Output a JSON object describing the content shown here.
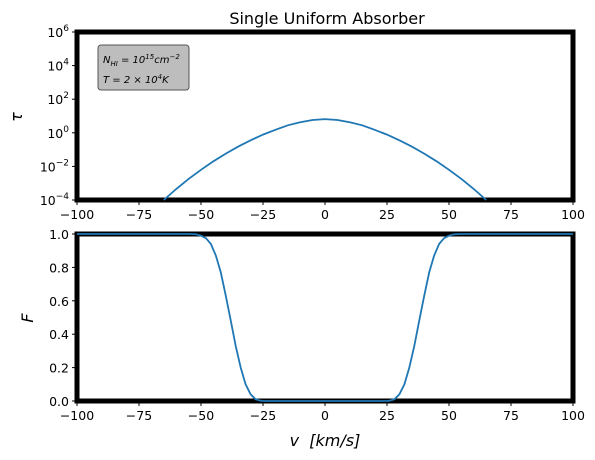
{
  "chart_data": [
    {
      "type": "line",
      "title": "Single Uniform Absorber",
      "ylabel": "τ",
      "yscale": "log",
      "xlim": [
        -100,
        100
      ],
      "ylim": [
        0.0001,
        1000000
      ],
      "xticks": [
        -100,
        -75,
        -50,
        -25,
        0,
        25,
        50,
        75,
        100
      ],
      "ytick_labels": [
        {
          "value": 0.0001,
          "base": "10",
          "exp": "−4"
        },
        {
          "value": 0.01,
          "base": "10",
          "exp": "−2"
        },
        {
          "value": 1,
          "base": "10",
          "exp": "0"
        },
        {
          "value": 100,
          "base": "10",
          "exp": "2"
        },
        {
          "value": 10000,
          "base": "10",
          "exp": "4"
        },
        {
          "value": 1000000,
          "base": "10",
          "exp": "6"
        }
      ],
      "annotation": {
        "line1": {
          "prefix": "N",
          "sub": "HI",
          "mid": " = 10",
          "sup": "15",
          "suffix": "cm",
          "sup2": "−2"
        },
        "line2": {
          "prefix": "T = 2 × 10",
          "sup": "4",
          "suffix": "K"
        }
      },
      "series": [
        {
          "color": "#1f77b4",
          "x": [
            -65,
            -60,
            -55,
            -50,
            -45,
            -40,
            -35,
            -30,
            -25,
            -20,
            -15,
            -10,
            -5,
            0,
            5,
            10,
            15,
            20,
            25,
            30,
            35,
            40,
            45,
            50,
            55,
            60,
            65
          ],
          "y": [
            0.0001,
            0.00045,
            0.0018,
            0.0063,
            0.02,
            0.058,
            0.15,
            0.36,
            0.78,
            1.5,
            2.8,
            4.3,
            5.8,
            6.5,
            5.8,
            4.3,
            2.8,
            1.5,
            0.78,
            0.36,
            0.15,
            0.058,
            0.02,
            0.0063,
            0.0018,
            0.00045,
            0.0001
          ]
        }
      ]
    },
    {
      "type": "line",
      "ylabel": "F",
      "xlabel": "v  [km/s]",
      "xlim": [
        -100,
        100
      ],
      "ylim": [
        0,
        1
      ],
      "xticks": [
        -100,
        -75,
        -50,
        -25,
        0,
        25,
        50,
        75,
        100
      ],
      "yticks": [
        "0.0",
        "0.2",
        "0.4",
        "0.6",
        "0.8",
        "1.0"
      ],
      "series": [
        {
          "color": "#1f77b4",
          "x": [
            -100,
            -55,
            -52,
            -50,
            -48,
            -46,
            -44,
            -42,
            -40,
            -38,
            -36,
            -34,
            -32,
            -30,
            -28,
            -26,
            -25,
            25,
            26,
            28,
            30,
            32,
            34,
            36,
            38,
            40,
            42,
            44,
            46,
            48,
            50,
            52,
            55,
            100
          ],
          "y": [
            1.0,
            1.0,
            0.998,
            0.99,
            0.975,
            0.94,
            0.87,
            0.77,
            0.63,
            0.48,
            0.33,
            0.2,
            0.1,
            0.04,
            0.01,
            0.002,
            0.0,
            0.0,
            0.002,
            0.01,
            0.04,
            0.1,
            0.2,
            0.33,
            0.48,
            0.63,
            0.77,
            0.87,
            0.94,
            0.975,
            0.99,
            0.998,
            1.0,
            1.0
          ]
        }
      ]
    }
  ]
}
